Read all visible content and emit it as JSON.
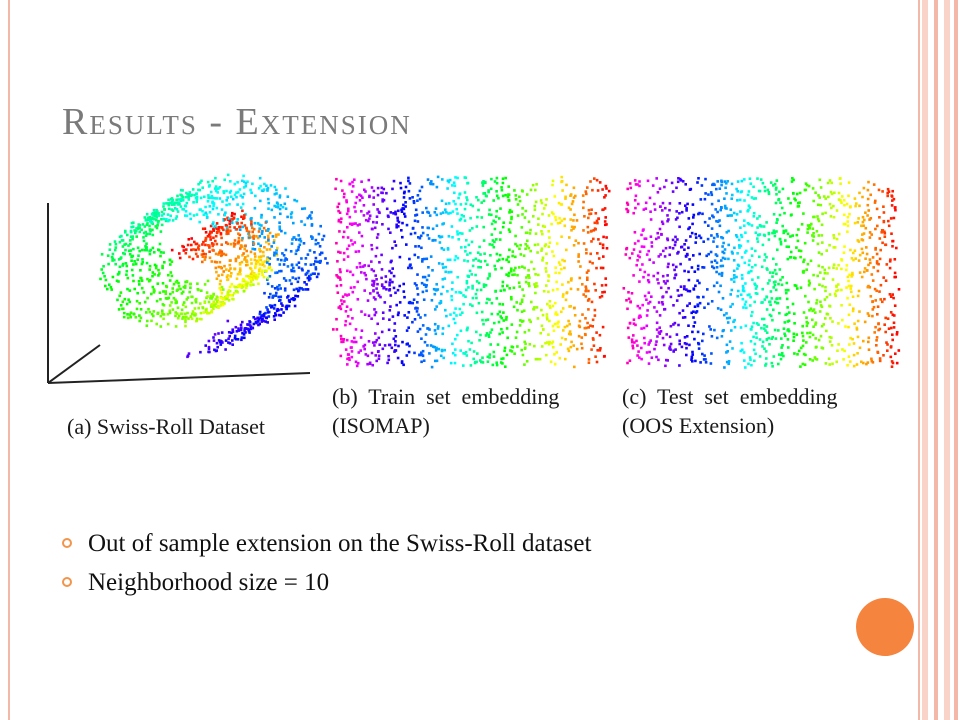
{
  "slide": {
    "title": "Results - Extension",
    "accent_color": "#f5843f",
    "stripe_color": "#f4b8a8",
    "bullets": [
      "Out of sample extension on the Swiss-Roll dataset",
      "Neighborhood size = 10"
    ]
  },
  "figure": {
    "panels": [
      {
        "caption": "(a) Swiss-Roll Dataset"
      },
      {
        "caption": "(b)  Train  set  embedding\n(ISOMAP)"
      },
      {
        "caption": "(c)  Test  set  embedding\n(OOS Extension)"
      }
    ]
  }
}
